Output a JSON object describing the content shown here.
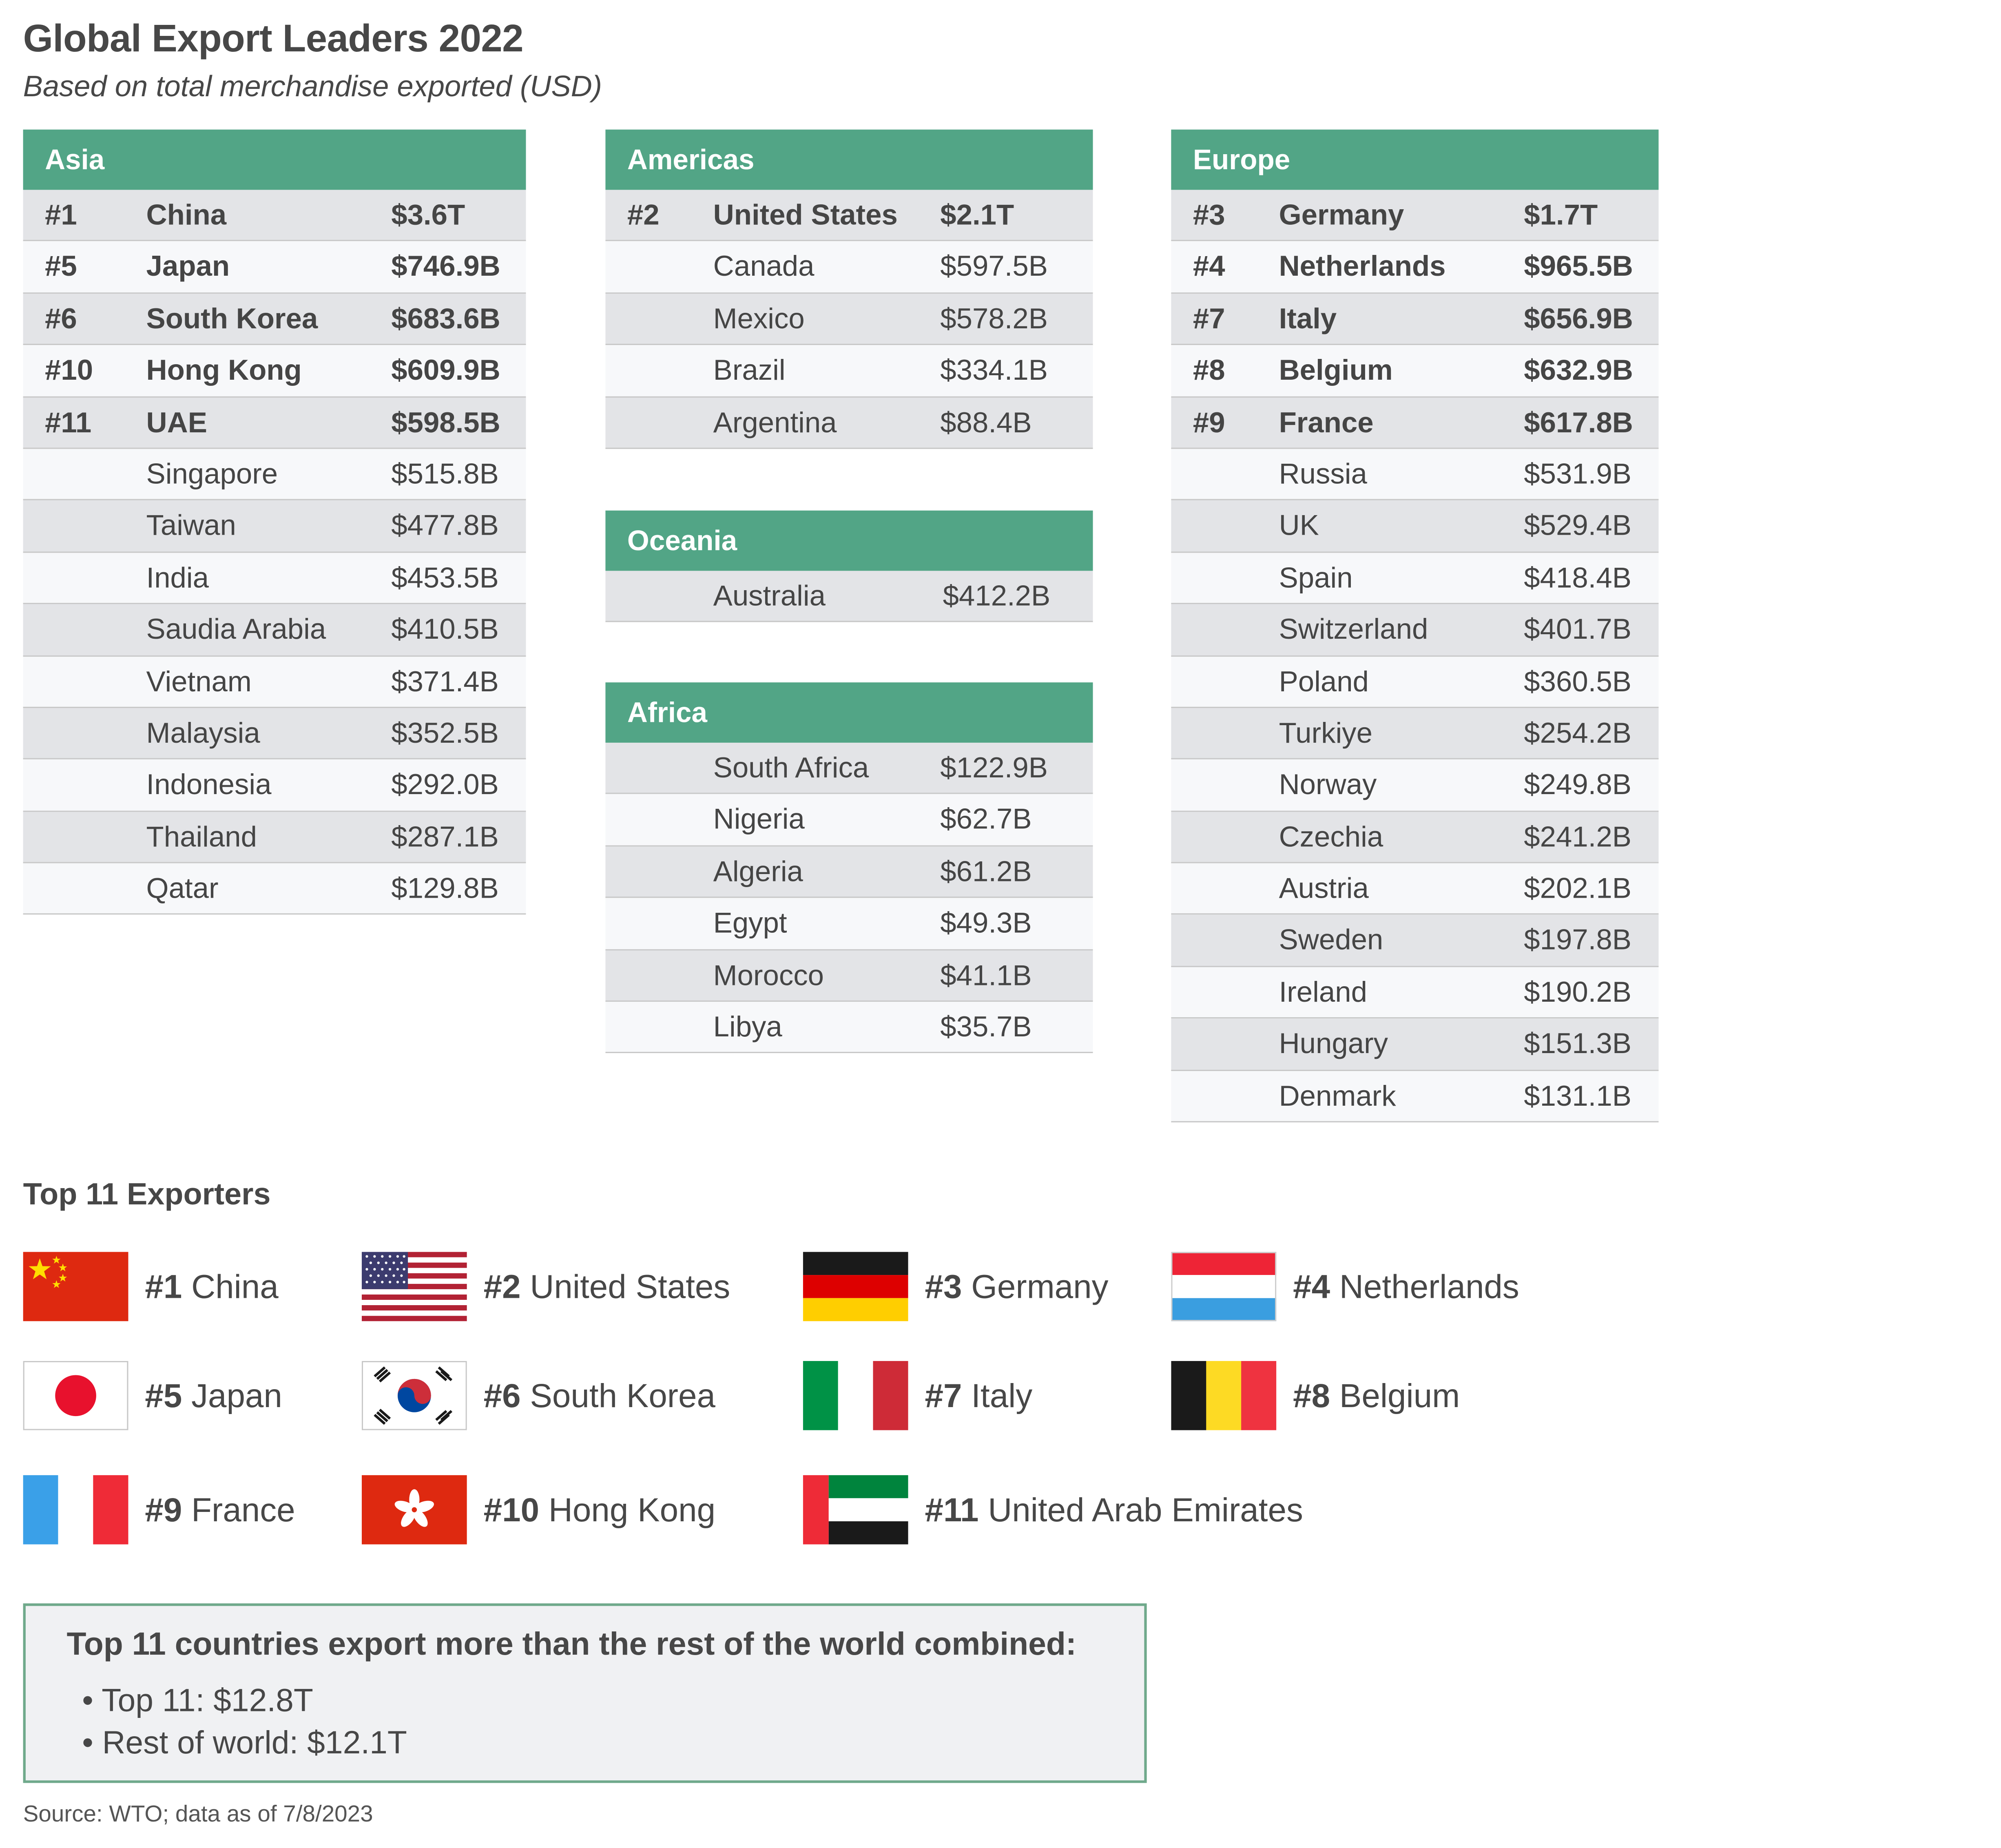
{
  "title": "Global Export Leaders 2022",
  "subtitle": "Based on total merchandise exported (USD)",
  "regions": {
    "asia": {
      "name": "Asia",
      "rows": [
        {
          "rank": "#1",
          "country": "China",
          "value": "$3.6T",
          "bold": true
        },
        {
          "rank": "#5",
          "country": "Japan",
          "value": "$746.9B",
          "bold": true
        },
        {
          "rank": "#6",
          "country": "South Korea",
          "value": "$683.6B",
          "bold": true
        },
        {
          "rank": "#10",
          "country": "Hong Kong",
          "value": "$609.9B",
          "bold": true
        },
        {
          "rank": "#11",
          "country": "UAE",
          "value": "$598.5B",
          "bold": true
        },
        {
          "rank": "",
          "country": "Singapore",
          "value": "$515.8B",
          "bold": false
        },
        {
          "rank": "",
          "country": "Taiwan",
          "value": "$477.8B",
          "bold": false
        },
        {
          "rank": "",
          "country": "India",
          "value": "$453.5B",
          "bold": false
        },
        {
          "rank": "",
          "country": "Saudia Arabia",
          "value": "$410.5B",
          "bold": false
        },
        {
          "rank": "",
          "country": "Vietnam",
          "value": "$371.4B",
          "bold": false
        },
        {
          "rank": "",
          "country": "Malaysia",
          "value": "$352.5B",
          "bold": false
        },
        {
          "rank": "",
          "country": "Indonesia",
          "value": "$292.0B",
          "bold": false
        },
        {
          "rank": "",
          "country": "Thailand",
          "value": "$287.1B",
          "bold": false
        },
        {
          "rank": "",
          "country": "Qatar",
          "value": "$129.8B",
          "bold": false
        }
      ]
    },
    "americas": {
      "name": "Americas",
      "rows": [
        {
          "rank": "#2",
          "country": "United States",
          "value": "$2.1T",
          "bold": true
        },
        {
          "rank": "",
          "country": "Canada",
          "value": "$597.5B",
          "bold": false
        },
        {
          "rank": "",
          "country": "Mexico",
          "value": "$578.2B",
          "bold": false
        },
        {
          "rank": "",
          "country": "Brazil",
          "value": "$334.1B",
          "bold": false
        },
        {
          "rank": "",
          "country": "Argentina",
          "value": "$88.4B",
          "bold": false
        }
      ]
    },
    "oceania": {
      "name": "Oceania",
      "rows": [
        {
          "rank": "",
          "country": "Australia",
          "value": "$412.2B",
          "bold": false
        }
      ]
    },
    "africa": {
      "name": "Africa",
      "rows": [
        {
          "rank": "",
          "country": "South Africa",
          "value": "$122.9B",
          "bold": false
        },
        {
          "rank": "",
          "country": "Nigeria",
          "value": "$62.7B",
          "bold": false
        },
        {
          "rank": "",
          "country": "Algeria",
          "value": "$61.2B",
          "bold": false
        },
        {
          "rank": "",
          "country": "Egypt",
          "value": "$49.3B",
          "bold": false
        },
        {
          "rank": "",
          "country": "Morocco",
          "value": "$41.1B",
          "bold": false
        },
        {
          "rank": "",
          "country": "Libya",
          "value": "$35.7B",
          "bold": false
        }
      ]
    },
    "europe": {
      "name": "Europe",
      "rows": [
        {
          "rank": "#3",
          "country": "Germany",
          "value": "$1.7T",
          "bold": true
        },
        {
          "rank": "#4",
          "country": "Netherlands",
          "value": "$965.5B",
          "bold": true
        },
        {
          "rank": "#7",
          "country": "Italy",
          "value": "$656.9B",
          "bold": true
        },
        {
          "rank": "#8",
          "country": "Belgium",
          "value": "$632.9B",
          "bold": true
        },
        {
          "rank": "#9",
          "country": "France",
          "value": "$617.8B",
          "bold": true
        },
        {
          "rank": "",
          "country": "Russia",
          "value": "$531.9B",
          "bold": false
        },
        {
          "rank": "",
          "country": "UK",
          "value": "$529.4B",
          "bold": false
        },
        {
          "rank": "",
          "country": "Spain",
          "value": "$418.4B",
          "bold": false
        },
        {
          "rank": "",
          "country": "Switzerland",
          "value": "$401.7B",
          "bold": false
        },
        {
          "rank": "",
          "country": "Poland",
          "value": "$360.5B",
          "bold": false
        },
        {
          "rank": "",
          "country": "Turkiye",
          "value": "$254.2B",
          "bold": false
        },
        {
          "rank": "",
          "country": "Norway",
          "value": "$249.8B",
          "bold": false
        },
        {
          "rank": "",
          "country": "Czechia",
          "value": "$241.2B",
          "bold": false
        },
        {
          "rank": "",
          "country": "Austria",
          "value": "$202.1B",
          "bold": false
        },
        {
          "rank": "",
          "country": "Sweden",
          "value": "$197.8B",
          "bold": false
        },
        {
          "rank": "",
          "country": "Ireland",
          "value": "$190.2B",
          "bold": false
        },
        {
          "rank": "",
          "country": "Hungary",
          "value": "$151.3B",
          "bold": false
        },
        {
          "rank": "",
          "country": "Denmark",
          "value": "$131.1B",
          "bold": false
        }
      ]
    }
  },
  "top_exporters": {
    "title": "Top 11 Exporters",
    "items": [
      {
        "rank": "#1",
        "name": "China",
        "flag_icon": "china-flag-icon"
      },
      {
        "rank": "#2",
        "name": "United States",
        "flag_icon": "usa-flag-icon"
      },
      {
        "rank": "#3",
        "name": "Germany",
        "flag_icon": "germany-flag-icon"
      },
      {
        "rank": "#4",
        "name": "Netherlands",
        "flag_icon": "netherlands-flag-icon"
      },
      {
        "rank": "#5",
        "name": "Japan",
        "flag_icon": "japan-flag-icon"
      },
      {
        "rank": "#6",
        "name": "South Korea",
        "flag_icon": "south-korea-flag-icon"
      },
      {
        "rank": "#7",
        "name": "Italy",
        "flag_icon": "italy-flag-icon"
      },
      {
        "rank": "#8",
        "name": "Belgium",
        "flag_icon": "belgium-flag-icon"
      },
      {
        "rank": "#9",
        "name": "France",
        "flag_icon": "france-flag-icon"
      },
      {
        "rank": "#10",
        "name": "Hong Kong",
        "flag_icon": "hong-kong-flag-icon"
      },
      {
        "rank": "#11",
        "name": "United Arab Emirates",
        "flag_icon": "uae-flag-icon"
      }
    ]
  },
  "summary": {
    "title": "Top 11 countries export more than the rest of the world combined:",
    "items": [
      "• Top 11: $12.8T",
      "• Rest of world: $12.1T"
    ]
  },
  "source": "Source: WTO; data as of 7/8/2023",
  "colors": {
    "header_green": "#52a586",
    "row_gray": "#e3e4e7",
    "row_light": "#f7f8fa",
    "summary_border": "#6fa98b",
    "text": "#474747"
  }
}
